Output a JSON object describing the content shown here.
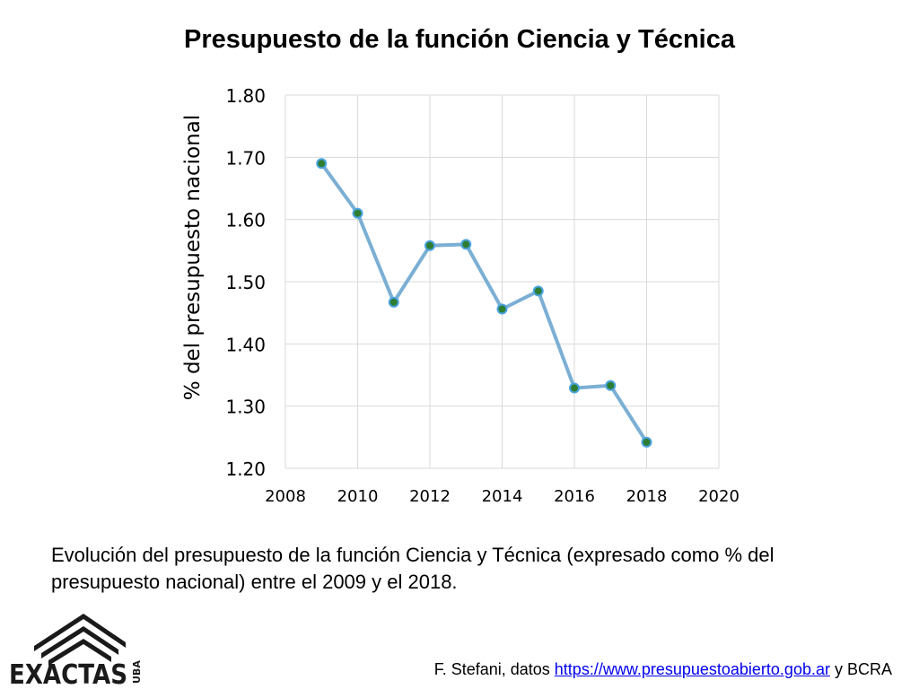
{
  "slide": {
    "title": "Presupuesto de la función Ciencia y Técnica",
    "caption": "Evolución del presupuesto de la función Ciencia y Técnica (expresado como % del presupuesto nacional) entre el 2009 y el 2018.",
    "credit_prefix": "F. Stefani, datos ",
    "credit_link": "https://www.presupuestoabierto.gob.ar",
    "credit_suffix": " y BCRA"
  },
  "logo": {
    "text": "EXACTAS",
    "side_text": "UBA"
  },
  "colors": {
    "line": "#7bafd4",
    "marker_fill": "#2e7d32",
    "marker_stroke": "#4aa3df",
    "grid": "#d9d9d9"
  },
  "chart_data": {
    "type": "scatter",
    "mode": "lines+markers",
    "title": "",
    "xlabel": "",
    "ylabel": "% del presupuesto nacional",
    "xlim": [
      2008,
      2020
    ],
    "ylim": [
      1.2,
      1.8
    ],
    "xticks": [
      "2008",
      "2010",
      "2012",
      "2014",
      "2016",
      "2018",
      "2020"
    ],
    "yticks": [
      "1.20",
      "1.30",
      "1.40",
      "1.50",
      "1.60",
      "1.70",
      "1.80"
    ],
    "grid": true,
    "x": [
      2009,
      2010,
      2011,
      2012,
      2013,
      2014,
      2015,
      2016,
      2017,
      2018
    ],
    "y": [
      1.69,
      1.61,
      1.467,
      1.558,
      1.56,
      1.456,
      1.485,
      1.329,
      1.333,
      1.242
    ]
  }
}
